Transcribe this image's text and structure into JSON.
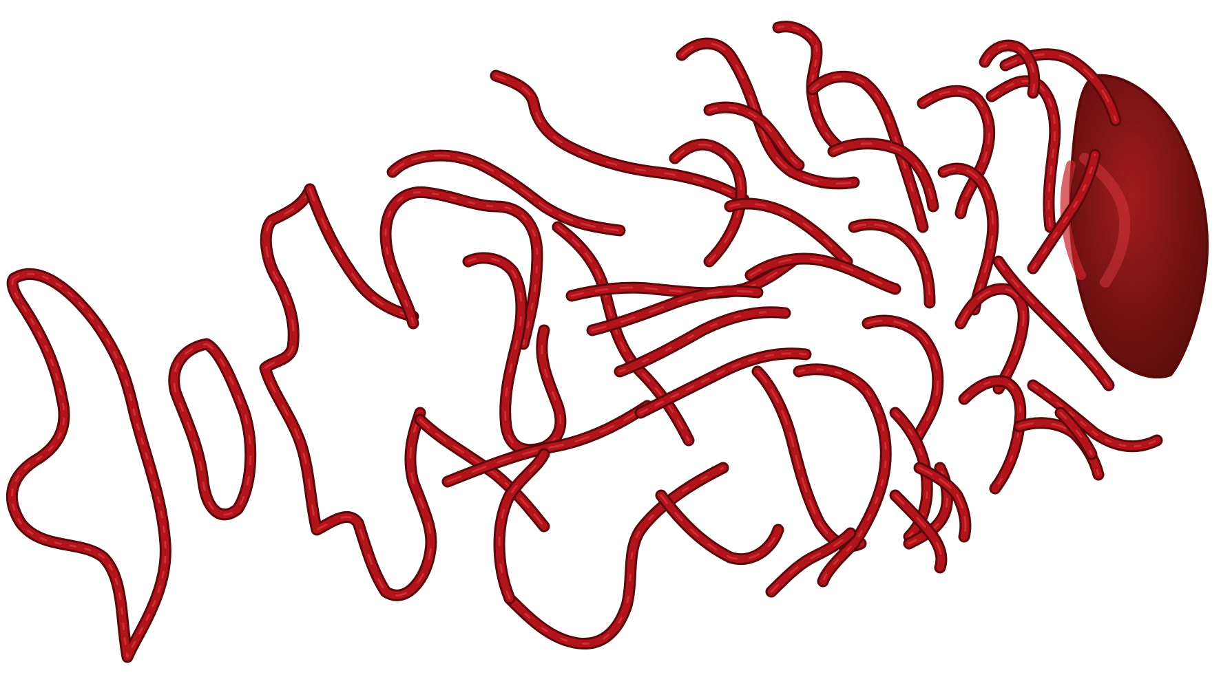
{
  "scene": {
    "subject": "red-tube-rendering",
    "background_color": "#ffffff",
    "colors": {
      "tube_dark": "#5a0a0a",
      "tube_main": "#b3131a",
      "tube_highlight": "#e8444a",
      "blob_fill": "#6b1212",
      "blob_edge": "#7e1616"
    }
  }
}
